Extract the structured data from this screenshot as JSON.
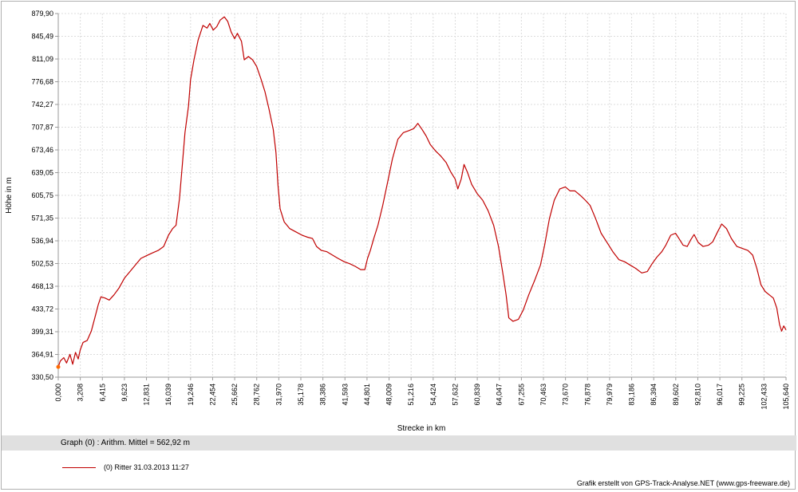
{
  "chart_data": {
    "type": "line",
    "xlabel": "Strecke  in  km",
    "ylabel": "Höhe  in  m",
    "xlim": [
      0,
      105.64
    ],
    "ylim": [
      330.5,
      879.9
    ],
    "grid": true,
    "x_ticks": [
      "0,000",
      "3,208",
      "6,415",
      "9,623",
      "12,831",
      "16,039",
      "19,246",
      "22,454",
      "25,662",
      "28,762",
      "31,970",
      "35,178",
      "38,386",
      "41,593",
      "44,801",
      "48,009",
      "51,216",
      "54,424",
      "57,632",
      "60,839",
      "64,047",
      "67,255",
      "70,463",
      "73,670",
      "76,878",
      "79,979",
      "83,186",
      "86,394",
      "89,602",
      "92,810",
      "96,017",
      "99,225",
      "102,433",
      "105,640"
    ],
    "y_ticks": [
      "879,90",
      "845,49",
      "811,09",
      "776,68",
      "742,27",
      "707,87",
      "673,46",
      "639,05",
      "605,75",
      "571,35",
      "536,94",
      "502,53",
      "468,13",
      "433,72",
      "399,31",
      "364,91",
      "330,50"
    ],
    "series": [
      {
        "name": "(0) Ritter 31.03.2013 11:27",
        "color": "#c00000",
        "points": [
          [
            0.0,
            346
          ],
          [
            0.3,
            355
          ],
          [
            0.8,
            360
          ],
          [
            1.2,
            352
          ],
          [
            1.7,
            365
          ],
          [
            2.1,
            350
          ],
          [
            2.5,
            368
          ],
          [
            2.9,
            358
          ],
          [
            3.2,
            372
          ],
          [
            3.6,
            383
          ],
          [
            4.2,
            386
          ],
          [
            4.8,
            400
          ],
          [
            5.3,
            420
          ],
          [
            5.8,
            440
          ],
          [
            6.2,
            452
          ],
          [
            6.8,
            450
          ],
          [
            7.4,
            447
          ],
          [
            8.1,
            455
          ],
          [
            8.8,
            465
          ],
          [
            9.6,
            480
          ],
          [
            10.4,
            490
          ],
          [
            11.2,
            500
          ],
          [
            12.0,
            510
          ],
          [
            12.8,
            514
          ],
          [
            13.6,
            518
          ],
          [
            14.5,
            522
          ],
          [
            15.3,
            528
          ],
          [
            16.0,
            545
          ],
          [
            16.6,
            555
          ],
          [
            17.1,
            560
          ],
          [
            17.6,
            600
          ],
          [
            18.0,
            650
          ],
          [
            18.4,
            700
          ],
          [
            18.9,
            740
          ],
          [
            19.2,
            780
          ],
          [
            19.7,
            810
          ],
          [
            20.3,
            840
          ],
          [
            21.0,
            862
          ],
          [
            21.6,
            858
          ],
          [
            22.0,
            865
          ],
          [
            22.5,
            855
          ],
          [
            23.0,
            860
          ],
          [
            23.5,
            870
          ],
          [
            24.1,
            875
          ],
          [
            24.6,
            868
          ],
          [
            25.1,
            852
          ],
          [
            25.6,
            842
          ],
          [
            26.0,
            850
          ],
          [
            26.6,
            838
          ],
          [
            27.0,
            810
          ],
          [
            27.6,
            815
          ],
          [
            28.2,
            810
          ],
          [
            28.8,
            800
          ],
          [
            29.4,
            782
          ],
          [
            30.0,
            762
          ],
          [
            30.6,
            735
          ],
          [
            31.2,
            705
          ],
          [
            31.6,
            670
          ],
          [
            31.9,
            620
          ],
          [
            32.2,
            585
          ],
          [
            32.8,
            565
          ],
          [
            33.6,
            555
          ],
          [
            34.5,
            550
          ],
          [
            35.4,
            545
          ],
          [
            36.2,
            542
          ],
          [
            36.9,
            540
          ],
          [
            37.5,
            528
          ],
          [
            38.2,
            522
          ],
          [
            39.0,
            520
          ],
          [
            39.8,
            515
          ],
          [
            40.6,
            510
          ],
          [
            41.5,
            505
          ],
          [
            42.3,
            502
          ],
          [
            43.1,
            498
          ],
          [
            43.9,
            493
          ],
          [
            44.5,
            493
          ],
          [
            44.9,
            510
          ],
          [
            45.3,
            522
          ],
          [
            45.8,
            540
          ],
          [
            46.4,
            560
          ],
          [
            47.1,
            590
          ],
          [
            47.8,
            625
          ],
          [
            48.5,
            660
          ],
          [
            49.3,
            690
          ],
          [
            50.1,
            700
          ],
          [
            50.9,
            703
          ],
          [
            51.6,
            706
          ],
          [
            52.2,
            714
          ],
          [
            52.8,
            705
          ],
          [
            53.4,
            695
          ],
          [
            54.0,
            682
          ],
          [
            54.8,
            672
          ],
          [
            55.5,
            665
          ],
          [
            56.3,
            655
          ],
          [
            57.0,
            640
          ],
          [
            57.6,
            630
          ],
          [
            58.0,
            615
          ],
          [
            58.5,
            630
          ],
          [
            58.9,
            652
          ],
          [
            59.4,
            640
          ],
          [
            60.0,
            622
          ],
          [
            60.8,
            608
          ],
          [
            61.6,
            598
          ],
          [
            62.4,
            582
          ],
          [
            63.2,
            560
          ],
          [
            63.9,
            528
          ],
          [
            64.5,
            490
          ],
          [
            65.0,
            455
          ],
          [
            65.4,
            420
          ],
          [
            66.0,
            415
          ],
          [
            66.8,
            418
          ],
          [
            67.5,
            432
          ],
          [
            68.3,
            455
          ],
          [
            69.2,
            478
          ],
          [
            70.0,
            500
          ],
          [
            70.6,
            530
          ],
          [
            71.3,
            570
          ],
          [
            72.0,
            598
          ],
          [
            72.8,
            615
          ],
          [
            73.6,
            618
          ],
          [
            74.3,
            612
          ],
          [
            75.0,
            612
          ],
          [
            75.8,
            605
          ],
          [
            76.5,
            598
          ],
          [
            77.2,
            590
          ],
          [
            78.0,
            570
          ],
          [
            78.8,
            548
          ],
          [
            79.6,
            535
          ],
          [
            80.5,
            520
          ],
          [
            81.4,
            508
          ],
          [
            82.2,
            505
          ],
          [
            83.0,
            500
          ],
          [
            83.8,
            495
          ],
          [
            84.7,
            488
          ],
          [
            85.5,
            490
          ],
          [
            86.2,
            502
          ],
          [
            86.9,
            512
          ],
          [
            87.6,
            520
          ],
          [
            88.2,
            530
          ],
          [
            88.9,
            545
          ],
          [
            89.6,
            548
          ],
          [
            90.1,
            540
          ],
          [
            90.7,
            530
          ],
          [
            91.3,
            528
          ],
          [
            91.8,
            538
          ],
          [
            92.3,
            546
          ],
          [
            92.9,
            534
          ],
          [
            93.6,
            528
          ],
          [
            94.4,
            530
          ],
          [
            95.0,
            535
          ],
          [
            95.7,
            550
          ],
          [
            96.3,
            562
          ],
          [
            97.0,
            555
          ],
          [
            97.7,
            540
          ],
          [
            98.5,
            528
          ],
          [
            99.3,
            525
          ],
          [
            100.1,
            522
          ],
          [
            100.8,
            515
          ],
          [
            101.4,
            495
          ],
          [
            102.0,
            470
          ],
          [
            102.6,
            460
          ],
          [
            103.2,
            455
          ],
          [
            103.8,
            450
          ],
          [
            104.3,
            435
          ],
          [
            104.7,
            410
          ],
          [
            105.0,
            400
          ],
          [
            105.3,
            408
          ],
          [
            105.64,
            402
          ]
        ]
      }
    ]
  },
  "stats": {
    "text": "Graph (0) :  Arithm. Mittel = 562,92 m"
  },
  "legend": {
    "label": "(0) Ritter 31.03.2013 11:27"
  },
  "credit": "Grafik erstellt von GPS-Track-Analyse.NET (www.gps-freeware.de)"
}
